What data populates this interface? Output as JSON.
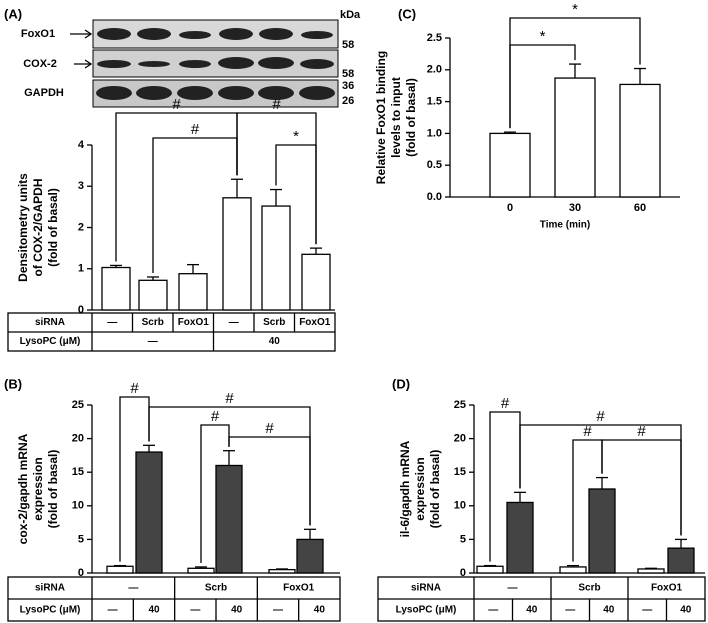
{
  "blot": {
    "bands": [
      "FoxO1",
      "COX-2",
      "GAPDH"
    ],
    "unit": "kDa",
    "markers": [
      58,
      58,
      36,
      26
    ]
  },
  "chart_data": [
    {
      "type": "bar",
      "panel_label": "(A)",
      "ylabel_lines": [
        "Densitometry units",
        "of COX-2/GAPDH",
        "(fold of basal)"
      ],
      "values": [
        1.03,
        0.72,
        0.88,
        2.72,
        2.52,
        1.35
      ],
      "errors": [
        0.05,
        0.08,
        0.22,
        0.45,
        0.4,
        0.15
      ],
      "color": "#ffffff",
      "ylim": [
        0,
        4
      ],
      "yticks": [
        0,
        1,
        2,
        3,
        4
      ],
      "annotations": [
        "#",
        "#",
        "#",
        "*"
      ],
      "table": {
        "rows": [
          {
            "label": "siRNA",
            "cells": [
              "—",
              "Scrb",
              "FoxO1",
              "—",
              "Scrb",
              "FoxO1"
            ]
          },
          {
            "label": "LysoPC (μM)",
            "cells": [
              "—",
              "40"
            ]
          }
        ]
      }
    },
    {
      "type": "grouped_bar",
      "panel_label": "(B)",
      "ylabel_lines": [
        "cox-2/gapdh mRNA",
        "expression",
        "(fold of basal)"
      ],
      "series": [
        {
          "color": "#ffffff",
          "values": [
            1.0,
            0.7,
            0.5
          ],
          "errors": [
            0.1,
            0.2,
            0.1
          ]
        },
        {
          "color": "#444444",
          "values": [
            18.0,
            16.0,
            5.0
          ],
          "errors": [
            1.0,
            2.2,
            1.5
          ]
        }
      ],
      "ylim": [
        0,
        25
      ],
      "yticks": [
        0,
        5,
        10,
        15,
        20,
        25
      ],
      "annotations": [
        "#",
        "#",
        "#",
        "#"
      ],
      "table": {
        "rows": [
          {
            "label": "siRNA",
            "cells": [
              "—",
              "Scrb",
              "FoxO1"
            ]
          },
          {
            "label": "LysoPC (μM)",
            "cells": [
              "—",
              "40",
              "—",
              "40",
              "—",
              "40"
            ]
          }
        ]
      }
    },
    {
      "type": "bar",
      "panel_label": "(C)",
      "ylabel_lines": [
        "Relative FoxO1 binding",
        "levels to input",
        "(fold of basal)"
      ],
      "categories": [
        "0",
        "30",
        "60"
      ],
      "xlabel": "Time (min)",
      "values": [
        1.0,
        1.87,
        1.77
      ],
      "errors": [
        0.02,
        0.22,
        0.25
      ],
      "color": "#ffffff",
      "ylim": [
        0,
        2.5
      ],
      "yticks": [
        {
          "value": 0,
          "label": "0.0"
        },
        0.5,
        {
          "value": 1,
          "label": "1.0"
        },
        1.5,
        {
          "value": 2,
          "label": "2.0"
        },
        2.5
      ],
      "annotations": [
        "*",
        "*"
      ]
    },
    {
      "type": "grouped_bar",
      "panel_label": "(D)",
      "ylabel_lines": [
        "il-6/gapdh mRNA",
        "expression",
        "(fold of basal)"
      ],
      "series": [
        {
          "color": "#ffffff",
          "values": [
            1.0,
            0.9,
            0.6
          ],
          "errors": [
            0.1,
            0.2,
            0.1
          ]
        },
        {
          "color": "#444444",
          "values": [
            10.5,
            12.5,
            3.7
          ],
          "errors": [
            1.5,
            1.7,
            1.3
          ]
        }
      ],
      "ylim": [
        0,
        25
      ],
      "yticks": [
        0,
        5,
        10,
        15,
        20,
        25
      ],
      "annotations": [
        "#",
        "#",
        "#",
        "#"
      ],
      "table": {
        "rows": [
          {
            "label": "siRNA",
            "cells": [
              "—",
              "Scrb",
              "FoxO1"
            ]
          },
          {
            "label": "LysoPC (μM)",
            "cells": [
              "—",
              "40",
              "—",
              "40",
              "—",
              "40"
            ]
          }
        ]
      }
    }
  ]
}
